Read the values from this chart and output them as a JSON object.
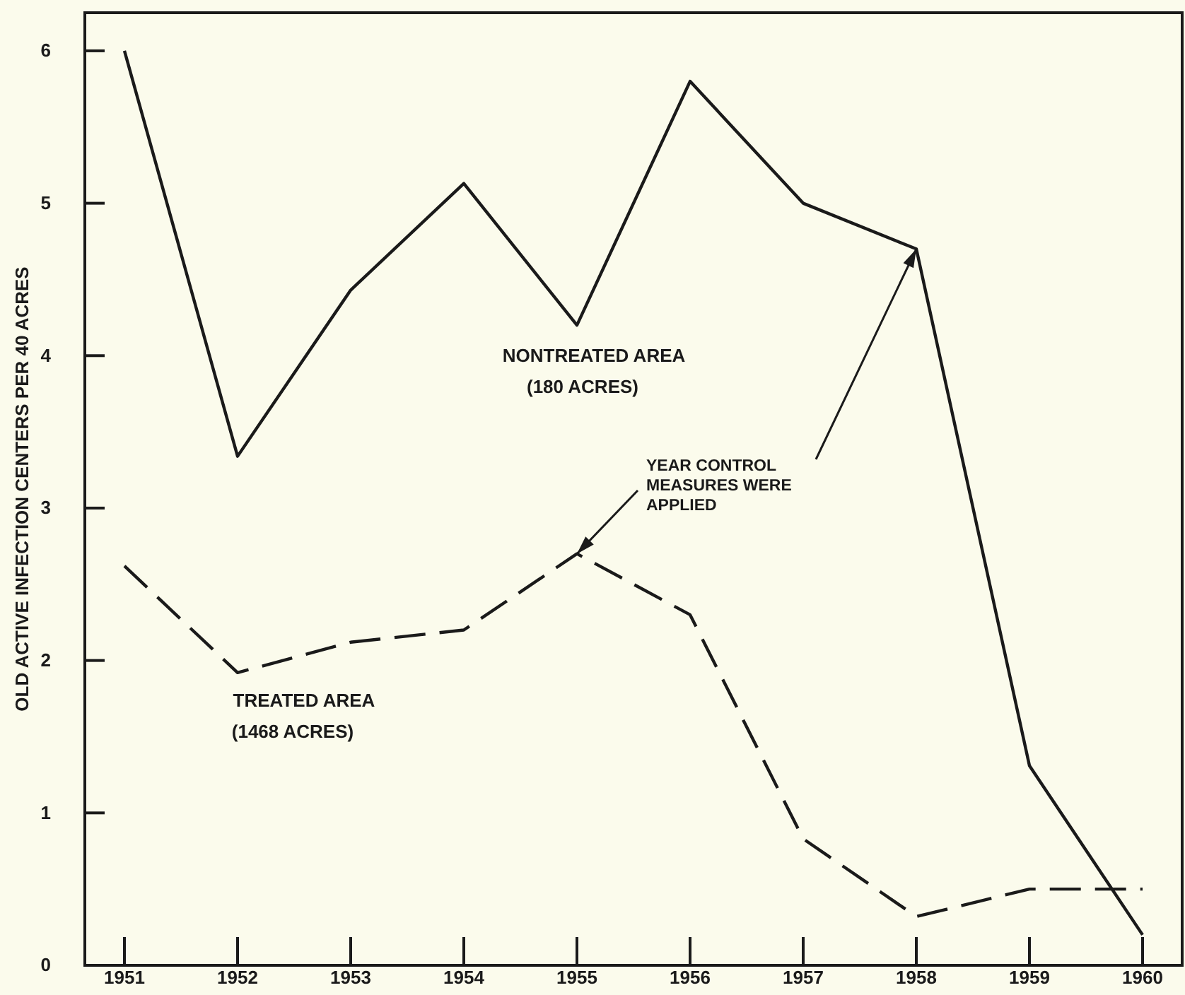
{
  "chart_data": {
    "type": "line",
    "ylabel": "OLD ACTIVE INFECTION CENTERS PER 40 ACRES",
    "x": [
      1951,
      1952,
      1953,
      1954,
      1955,
      1956,
      1957,
      1958,
      1959,
      1960
    ],
    "series": [
      {
        "name": "NONTREATED AREA (180 ACRES)",
        "color": "#1a1a1a",
        "line_style": "solid",
        "values": [
          6.0,
          3.34,
          4.43,
          5.13,
          4.2,
          5.8,
          5.0,
          4.7,
          1.31,
          0.2
        ]
      },
      {
        "name": "TREATED AREA (1468 ACRES)",
        "color": "#1a1a1a",
        "line_style": "dashed",
        "values": [
          2.62,
          1.92,
          2.12,
          2.2,
          2.7,
          2.3,
          0.83,
          0.32,
          0.5,
          0.5
        ]
      }
    ],
    "xlim": [
      1950.65,
      1960.35
    ],
    "ylim": [
      0,
      6.25
    ],
    "xticks": [
      {
        "value": 1951,
        "label": "1951"
      },
      {
        "value": 1952,
        "label": "1952"
      },
      {
        "value": 1953,
        "label": "1953"
      },
      {
        "value": 1954,
        "label": "1954"
      },
      {
        "value": 1955,
        "label": "1955"
      },
      {
        "value": 1956,
        "label": "1956"
      },
      {
        "value": 1957,
        "label": "1957"
      },
      {
        "value": 1958,
        "label": "1958"
      },
      {
        "value": 1959,
        "label": "1959"
      },
      {
        "value": 1960,
        "label": "1960"
      }
    ],
    "yticks": [
      0,
      1,
      2,
      3,
      4,
      5,
      6
    ],
    "annotations": [
      {
        "text": "YEAR CONTROL MEASURES WERE APPLIED",
        "x": 1955,
        "y": 2.7
      }
    ],
    "grid": false,
    "legend": false
  }
}
